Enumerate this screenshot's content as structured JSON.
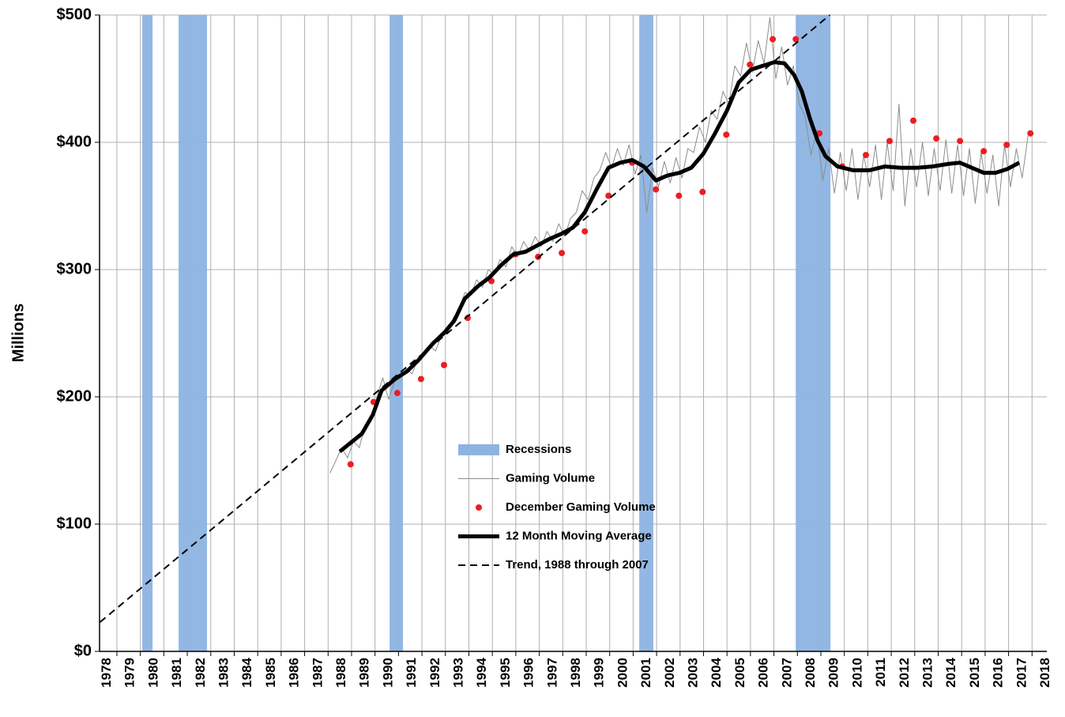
{
  "chart_data": {
    "type": "line",
    "ylabel": "Millions",
    "ylim": [
      0,
      500
    ],
    "yticks": [
      {
        "value": 0,
        "label": "$0"
      },
      {
        "value": 100,
        "label": "$100"
      },
      {
        "value": 200,
        "label": "$200"
      },
      {
        "value": 300,
        "label": "$300"
      },
      {
        "value": 400,
        "label": "$400"
      },
      {
        "value": 500,
        "label": "$500"
      }
    ],
    "xlim": [
      1978.18,
      2018.55
    ],
    "xticks": [
      1978,
      1979,
      1980,
      1981,
      1982,
      1983,
      1984,
      1985,
      1986,
      1987,
      1988,
      1989,
      1990,
      1991,
      1992,
      1993,
      1994,
      1995,
      1996,
      1997,
      1998,
      1999,
      2000,
      2001,
      2002,
      2003,
      2004,
      2005,
      2006,
      2007,
      2008,
      2009,
      2010,
      2011,
      2012,
      2013,
      2014,
      2015,
      2016,
      2017,
      2018
    ],
    "grid": true,
    "series": [
      {
        "name": "Recessions",
        "kind": "span",
        "color": "#8db3e2",
        "spans": [
          [
            1980.0,
            1980.44
          ],
          [
            1981.55,
            1982.76
          ],
          [
            1990.54,
            1991.11
          ],
          [
            2001.18,
            2001.78
          ],
          [
            2007.85,
            2009.33
          ]
        ]
      },
      {
        "name": "Gaming Volume",
        "kind": "line",
        "style": "thin",
        "color": "#8c8c8c",
        "x": [
          1988.0,
          1988.25,
          1988.5,
          1988.75,
          1989.0,
          1989.25,
          1989.5,
          1989.75,
          1990.0,
          1990.25,
          1990.5,
          1990.75,
          1991.0,
          1991.25,
          1991.5,
          1991.75,
          1992.0,
          1992.25,
          1992.5,
          1992.75,
          1993.0,
          1993.25,
          1993.5,
          1993.75,
          1994.0,
          1994.25,
          1994.5,
          1994.75,
          1995.0,
          1995.25,
          1995.5,
          1995.75,
          1996.0,
          1996.25,
          1996.5,
          1996.75,
          1997.0,
          1997.25,
          1997.5,
          1997.75,
          1998.0,
          1998.25,
          1998.5,
          1998.75,
          1999.0,
          1999.25,
          1999.5,
          1999.75,
          2000.0,
          2000.25,
          2000.5,
          2000.75,
          2001.0,
          2001.25,
          2001.5,
          2001.75,
          2002.0,
          2002.25,
          2002.5,
          2002.75,
          2003.0,
          2003.25,
          2003.5,
          2003.75,
          2004.0,
          2004.25,
          2004.5,
          2004.75,
          2005.0,
          2005.25,
          2005.5,
          2005.75,
          2006.0,
          2006.25,
          2006.5,
          2006.75,
          2007.0,
          2007.25,
          2007.5,
          2007.75,
          2008.0,
          2008.25,
          2008.5,
          2008.75,
          2009.0,
          2009.25,
          2009.5,
          2009.75,
          2010.0,
          2010.25,
          2010.5,
          2010.75,
          2011.0,
          2011.25,
          2011.5,
          2011.75,
          2012.0,
          2012.25,
          2012.5,
          2012.75,
          2013.0,
          2013.25,
          2013.5,
          2013.75,
          2014.0,
          2014.25,
          2014.5,
          2014.75,
          2015.0,
          2015.25,
          2015.5,
          2015.75,
          2016.0,
          2016.25,
          2016.5,
          2016.75,
          2017.0,
          2017.25,
          2017.5,
          2017.75
        ],
        "values": [
          140,
          150,
          160,
          152,
          165,
          160,
          178,
          182,
          200,
          215,
          198,
          212,
          215,
          222,
          218,
          230,
          232,
          240,
          236,
          248,
          250,
          262,
          268,
          282,
          280,
          292,
          286,
          300,
          296,
          308,
          302,
          318,
          310,
          322,
          315,
          326,
          318,
          330,
          322,
          336,
          326,
          340,
          345,
          362,
          355,
          372,
          378,
          392,
          380,
          395,
          382,
          398,
          375,
          390,
          345,
          380,
          365,
          385,
          368,
          388,
          372,
          395,
          392,
          412,
          400,
          425,
          418,
          440,
          430,
          460,
          452,
          478,
          455,
          480,
          462,
          498,
          450,
          475,
          445,
          460,
          430,
          420,
          390,
          410,
          370,
          395,
          360,
          392,
          362,
          395,
          355,
          390,
          365,
          398,
          355,
          400,
          362,
          430,
          350,
          395,
          365,
          400,
          358,
          395,
          362,
          402,
          360,
          398,
          358,
          395,
          352,
          392,
          360,
          390,
          350,
          398,
          365,
          395,
          372,
          405
        ]
      },
      {
        "name": "December Gaming Volume",
        "kind": "dot",
        "color": "#ed1c24",
        "x": [
          1988.88,
          1989.86,
          1990.87,
          1991.88,
          1992.86,
          1993.87,
          1994.88,
          1995.89,
          1996.87,
          1997.88,
          1998.86,
          1999.87,
          2000.88,
          2001.89,
          2002.87,
          2003.88,
          2004.89,
          2005.9,
          2006.87,
          2007.85,
          2008.86,
          2009.83,
          2010.84,
          2011.85,
          2012.86,
          2013.84,
          2014.85,
          2015.86,
          2016.84,
          2017.85
        ],
        "values": [
          147,
          196,
          203,
          214,
          225,
          262,
          291,
          312,
          310,
          313,
          330,
          358,
          384,
          363,
          358,
          361,
          406,
          461,
          481,
          481,
          407,
          381,
          390,
          401,
          417,
          403,
          401,
          393,
          398,
          407
        ]
      },
      {
        "name": "12 Month Moving Average",
        "kind": "line",
        "style": "thick",
        "color": "#000000",
        "x": [
          1988.42,
          1989.36,
          1989.83,
          1990.2,
          1990.77,
          1991.28,
          1991.78,
          1992.39,
          1992.9,
          1993.3,
          1993.74,
          1994.31,
          1994.81,
          1995.32,
          1995.82,
          1996.33,
          1996.84,
          1997.34,
          1997.85,
          1998.35,
          1998.86,
          1999.36,
          1999.87,
          2000.37,
          2000.88,
          2001.38,
          2001.89,
          2002.39,
          2002.9,
          2003.4,
          2003.91,
          2004.41,
          2004.92,
          2005.42,
          2005.93,
          2006.43,
          2006.94,
          2007.37,
          2007.78,
          2008.11,
          2008.45,
          2008.79,
          2009.12,
          2009.63,
          2010.3,
          2010.98,
          2011.65,
          2012.32,
          2013.0,
          2013.67,
          2014.34,
          2014.85,
          2015.35,
          2015.86,
          2016.36,
          2016.87,
          2017.37
        ],
        "values": [
          157,
          171,
          186,
          205,
          214,
          220,
          229,
          242,
          251,
          260,
          277,
          287,
          294,
          304,
          312,
          314,
          319,
          324,
          328,
          333,
          345,
          363,
          380,
          384,
          386,
          381,
          370,
          374,
          376,
          380,
          391,
          407,
          425,
          447,
          457,
          460,
          463,
          462,
          453,
          440,
          419,
          401,
          389,
          381,
          378,
          378,
          381,
          380,
          380,
          381,
          383,
          384,
          380,
          376,
          376,
          379,
          384
        ]
      },
      {
        "name": "Trend, 1988 through 2007",
        "kind": "line",
        "style": "dashed",
        "color": "#000000",
        "x": [
          1978.2,
          2009.3
        ],
        "values": [
          23,
          500
        ]
      }
    ]
  }
}
